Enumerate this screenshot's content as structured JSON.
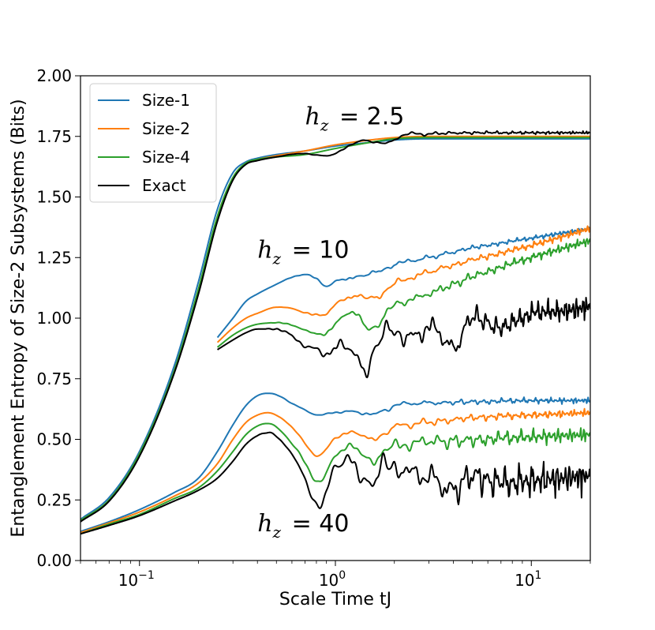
{
  "chart_data": {
    "type": "line",
    "title": "",
    "xlabel": "Scale Time tJ",
    "ylabel": "Entanglement Entropy of Size-2 Subsystems (Bits)",
    "xscale": "log",
    "xlim": [
      0.05,
      20
    ],
    "ylim": [
      0.0,
      2.0
    ],
    "yticks": [
      0.0,
      0.25,
      0.5,
      0.75,
      1.0,
      1.25,
      1.5,
      1.75,
      2.0
    ],
    "ytick_labels": [
      "0.00",
      "0.25",
      "0.50",
      "0.75",
      "1.00",
      "1.25",
      "1.50",
      "1.75",
      "2.00"
    ],
    "xticks": [
      0.1,
      1,
      10
    ],
    "xtick_base": "10",
    "xtick_exponents": [
      "−1",
      "0",
      "1"
    ],
    "legend": {
      "position": "upper-left",
      "entries": [
        {
          "label": "Size-1",
          "color": "#1f77b4"
        },
        {
          "label": "Size-2",
          "color": "#ff7f0e"
        },
        {
          "label": "Size-4",
          "color": "#2ca02c"
        },
        {
          "label": "Exact",
          "color": "#000000"
        }
      ]
    },
    "annotations": [
      {
        "var": "h",
        "sub": "z",
        "value": "= 2.5",
        "x": 0.7,
        "y": 1.8
      },
      {
        "var": "h",
        "sub": "z",
        "value": "= 10",
        "x": 0.4,
        "y": 1.25
      },
      {
        "var": "h",
        "sub": "z",
        "value": "= 40",
        "x": 0.4,
        "y": 0.12
      }
    ],
    "groups": [
      {
        "name": "hz=2.5",
        "series": [
          {
            "name": "Size-1",
            "color": "#1f77b4",
            "oscillation": 0.0,
            "x": [
              0.05,
              0.07,
              0.1,
              0.15,
              0.2,
              0.25,
              0.3,
              0.35,
              0.4,
              0.5,
              0.7,
              1.0,
              1.5,
              2,
              3,
              5,
              10,
              20
            ],
            "y": [
              0.17,
              0.26,
              0.45,
              0.8,
              1.15,
              1.45,
              1.6,
              1.645,
              1.66,
              1.675,
              1.69,
              1.71,
              1.725,
              1.735,
              1.74,
              1.74,
              1.74,
              1.74
            ]
          },
          {
            "name": "Size-2",
            "color": "#ff7f0e",
            "oscillation": 0.0,
            "x": [
              0.05,
              0.07,
              0.1,
              0.15,
              0.2,
              0.25,
              0.3,
              0.35,
              0.4,
              0.5,
              0.7,
              1.0,
              1.5,
              2,
              3,
              5,
              10,
              20
            ],
            "y": [
              0.165,
              0.25,
              0.44,
              0.78,
              1.12,
              1.42,
              1.58,
              1.64,
              1.655,
              1.67,
              1.69,
              1.715,
              1.735,
              1.745,
              1.75,
              1.75,
              1.75,
              1.75
            ]
          },
          {
            "name": "Size-4",
            "color": "#2ca02c",
            "oscillation": 0.0,
            "x": [
              0.05,
              0.07,
              0.1,
              0.15,
              0.2,
              0.25,
              0.3,
              0.35,
              0.4,
              0.5,
              0.7,
              1.0,
              1.5,
              2,
              3,
              5,
              10,
              20
            ],
            "y": [
              0.165,
              0.25,
              0.44,
              0.78,
              1.12,
              1.42,
              1.58,
              1.64,
              1.655,
              1.665,
              1.675,
              1.7,
              1.725,
              1.74,
              1.745,
              1.745,
              1.745,
              1.745
            ]
          },
          {
            "name": "Exact",
            "color": "#000000",
            "oscillation": 0.008,
            "x": [
              0.05,
              0.07,
              0.1,
              0.15,
              0.2,
              0.25,
              0.3,
              0.35,
              0.4,
              0.5,
              0.7,
              0.9,
              1.1,
              1.4,
              1.8,
              2.2,
              3,
              5,
              10,
              20
            ],
            "y": [
              0.16,
              0.245,
              0.43,
              0.77,
              1.1,
              1.4,
              1.57,
              1.635,
              1.65,
              1.665,
              1.68,
              1.67,
              1.695,
              1.735,
              1.72,
              1.755,
              1.76,
              1.765,
              1.765,
              1.765
            ]
          }
        ]
      },
      {
        "name": "hz=10",
        "series": [
          {
            "name": "Size-1",
            "color": "#1f77b4",
            "oscillation": 0.012,
            "x": [
              0.25,
              0.3,
              0.35,
              0.4,
              0.5,
              0.6,
              0.7,
              0.8,
              0.9,
              1.0,
              1.2,
              1.5,
              2,
              3,
              5,
              10,
              20
            ],
            "y": [
              0.92,
              1.0,
              1.07,
              1.1,
              1.14,
              1.17,
              1.18,
              1.16,
              1.13,
              1.15,
              1.17,
              1.18,
              1.22,
              1.25,
              1.29,
              1.33,
              1.37
            ]
          },
          {
            "name": "Size-2",
            "color": "#ff7f0e",
            "oscillation": 0.018,
            "x": [
              0.25,
              0.3,
              0.35,
              0.4,
              0.5,
              0.6,
              0.7,
              0.8,
              0.9,
              1.0,
              1.2,
              1.5,
              2,
              3,
              5,
              10,
              20
            ],
            "y": [
              0.9,
              0.96,
              1.0,
              1.02,
              1.045,
              1.04,
              1.02,
              1.01,
              1.02,
              1.06,
              1.09,
              1.08,
              1.14,
              1.19,
              1.24,
              1.3,
              1.37
            ]
          },
          {
            "name": "Size-4",
            "color": "#2ca02c",
            "oscillation": 0.022,
            "x": [
              0.25,
              0.3,
              0.35,
              0.4,
              0.5,
              0.6,
              0.7,
              0.8,
              0.9,
              1.0,
              1.2,
              1.5,
              2,
              3,
              5,
              10,
              20
            ],
            "y": [
              0.88,
              0.93,
              0.96,
              0.975,
              0.98,
              0.97,
              0.95,
              0.935,
              0.945,
              0.98,
              1.02,
              0.96,
              1.05,
              1.1,
              1.17,
              1.25,
              1.32
            ]
          },
          {
            "name": "Exact",
            "color": "#000000",
            "oscillation": 0.06,
            "x": [
              0.25,
              0.3,
              0.35,
              0.4,
              0.5,
              0.6,
              0.7,
              0.8,
              0.9,
              1.0,
              1.2,
              1.4,
              1.6,
              2,
              2.5,
              3,
              4,
              5,
              7,
              10,
              15,
              20
            ],
            "y": [
              0.87,
              0.91,
              0.94,
              0.955,
              0.95,
              0.93,
              0.89,
              0.88,
              0.86,
              0.87,
              0.86,
              0.8,
              0.88,
              0.95,
              0.92,
              0.97,
              0.88,
              1.0,
              0.96,
              1.02,
              1.03,
              1.05
            ]
          }
        ]
      },
      {
        "name": "hz=40",
        "series": [
          {
            "name": "Size-1",
            "color": "#1f77b4",
            "oscillation": 0.015,
            "x": [
              0.05,
              0.07,
              0.1,
              0.15,
              0.2,
              0.25,
              0.3,
              0.35,
              0.4,
              0.45,
              0.5,
              0.6,
              0.7,
              0.8,
              0.9,
              1.0,
              1.2,
              1.5,
              2,
              3,
              5,
              10,
              20
            ],
            "y": [
              0.12,
              0.16,
              0.21,
              0.28,
              0.34,
              0.45,
              0.56,
              0.64,
              0.68,
              0.69,
              0.685,
              0.65,
              0.62,
              0.6,
              0.6,
              0.61,
              0.62,
              0.6,
              0.64,
              0.65,
              0.655,
              0.66,
              0.66
            ]
          },
          {
            "name": "Size-2",
            "color": "#ff7f0e",
            "oscillation": 0.02,
            "x": [
              0.05,
              0.07,
              0.1,
              0.15,
              0.2,
              0.25,
              0.3,
              0.35,
              0.4,
              0.45,
              0.5,
              0.6,
              0.7,
              0.8,
              0.9,
              1.0,
              1.2,
              1.5,
              2,
              3,
              5,
              10,
              20
            ],
            "y": [
              0.115,
              0.155,
              0.2,
              0.265,
              0.32,
              0.4,
              0.5,
              0.57,
              0.6,
              0.61,
              0.6,
              0.55,
              0.48,
              0.43,
              0.46,
              0.51,
              0.53,
              0.5,
              0.55,
              0.57,
              0.59,
              0.6,
              0.61
            ]
          },
          {
            "name": "Size-4",
            "color": "#2ca02c",
            "oscillation": 0.04,
            "x": [
              0.05,
              0.07,
              0.1,
              0.15,
              0.2,
              0.25,
              0.3,
              0.35,
              0.4,
              0.45,
              0.5,
              0.6,
              0.7,
              0.8,
              0.9,
              1.0,
              1.2,
              1.5,
              2,
              3,
              5,
              10,
              20
            ],
            "y": [
              0.11,
              0.15,
              0.19,
              0.255,
              0.3,
              0.37,
              0.45,
              0.52,
              0.555,
              0.565,
              0.55,
              0.48,
              0.4,
              0.33,
              0.37,
              0.44,
              0.46,
              0.42,
              0.47,
              0.49,
              0.5,
              0.51,
              0.52
            ]
          },
          {
            "name": "Exact",
            "color": "#000000",
            "oscillation": 0.09,
            "x": [
              0.05,
              0.07,
              0.1,
              0.15,
              0.2,
              0.25,
              0.3,
              0.35,
              0.4,
              0.45,
              0.5,
              0.6,
              0.7,
              0.8,
              0.9,
              1.0,
              1.2,
              1.5,
              2,
              3,
              4,
              5,
              7,
              10,
              15,
              20
            ],
            "y": [
              0.11,
              0.145,
              0.185,
              0.245,
              0.29,
              0.34,
              0.41,
              0.48,
              0.515,
              0.525,
              0.51,
              0.44,
              0.34,
              0.25,
              0.29,
              0.37,
              0.39,
              0.34,
              0.38,
              0.34,
              0.3,
              0.36,
              0.32,
              0.33,
              0.34,
              0.35
            ]
          }
        ]
      }
    ]
  }
}
